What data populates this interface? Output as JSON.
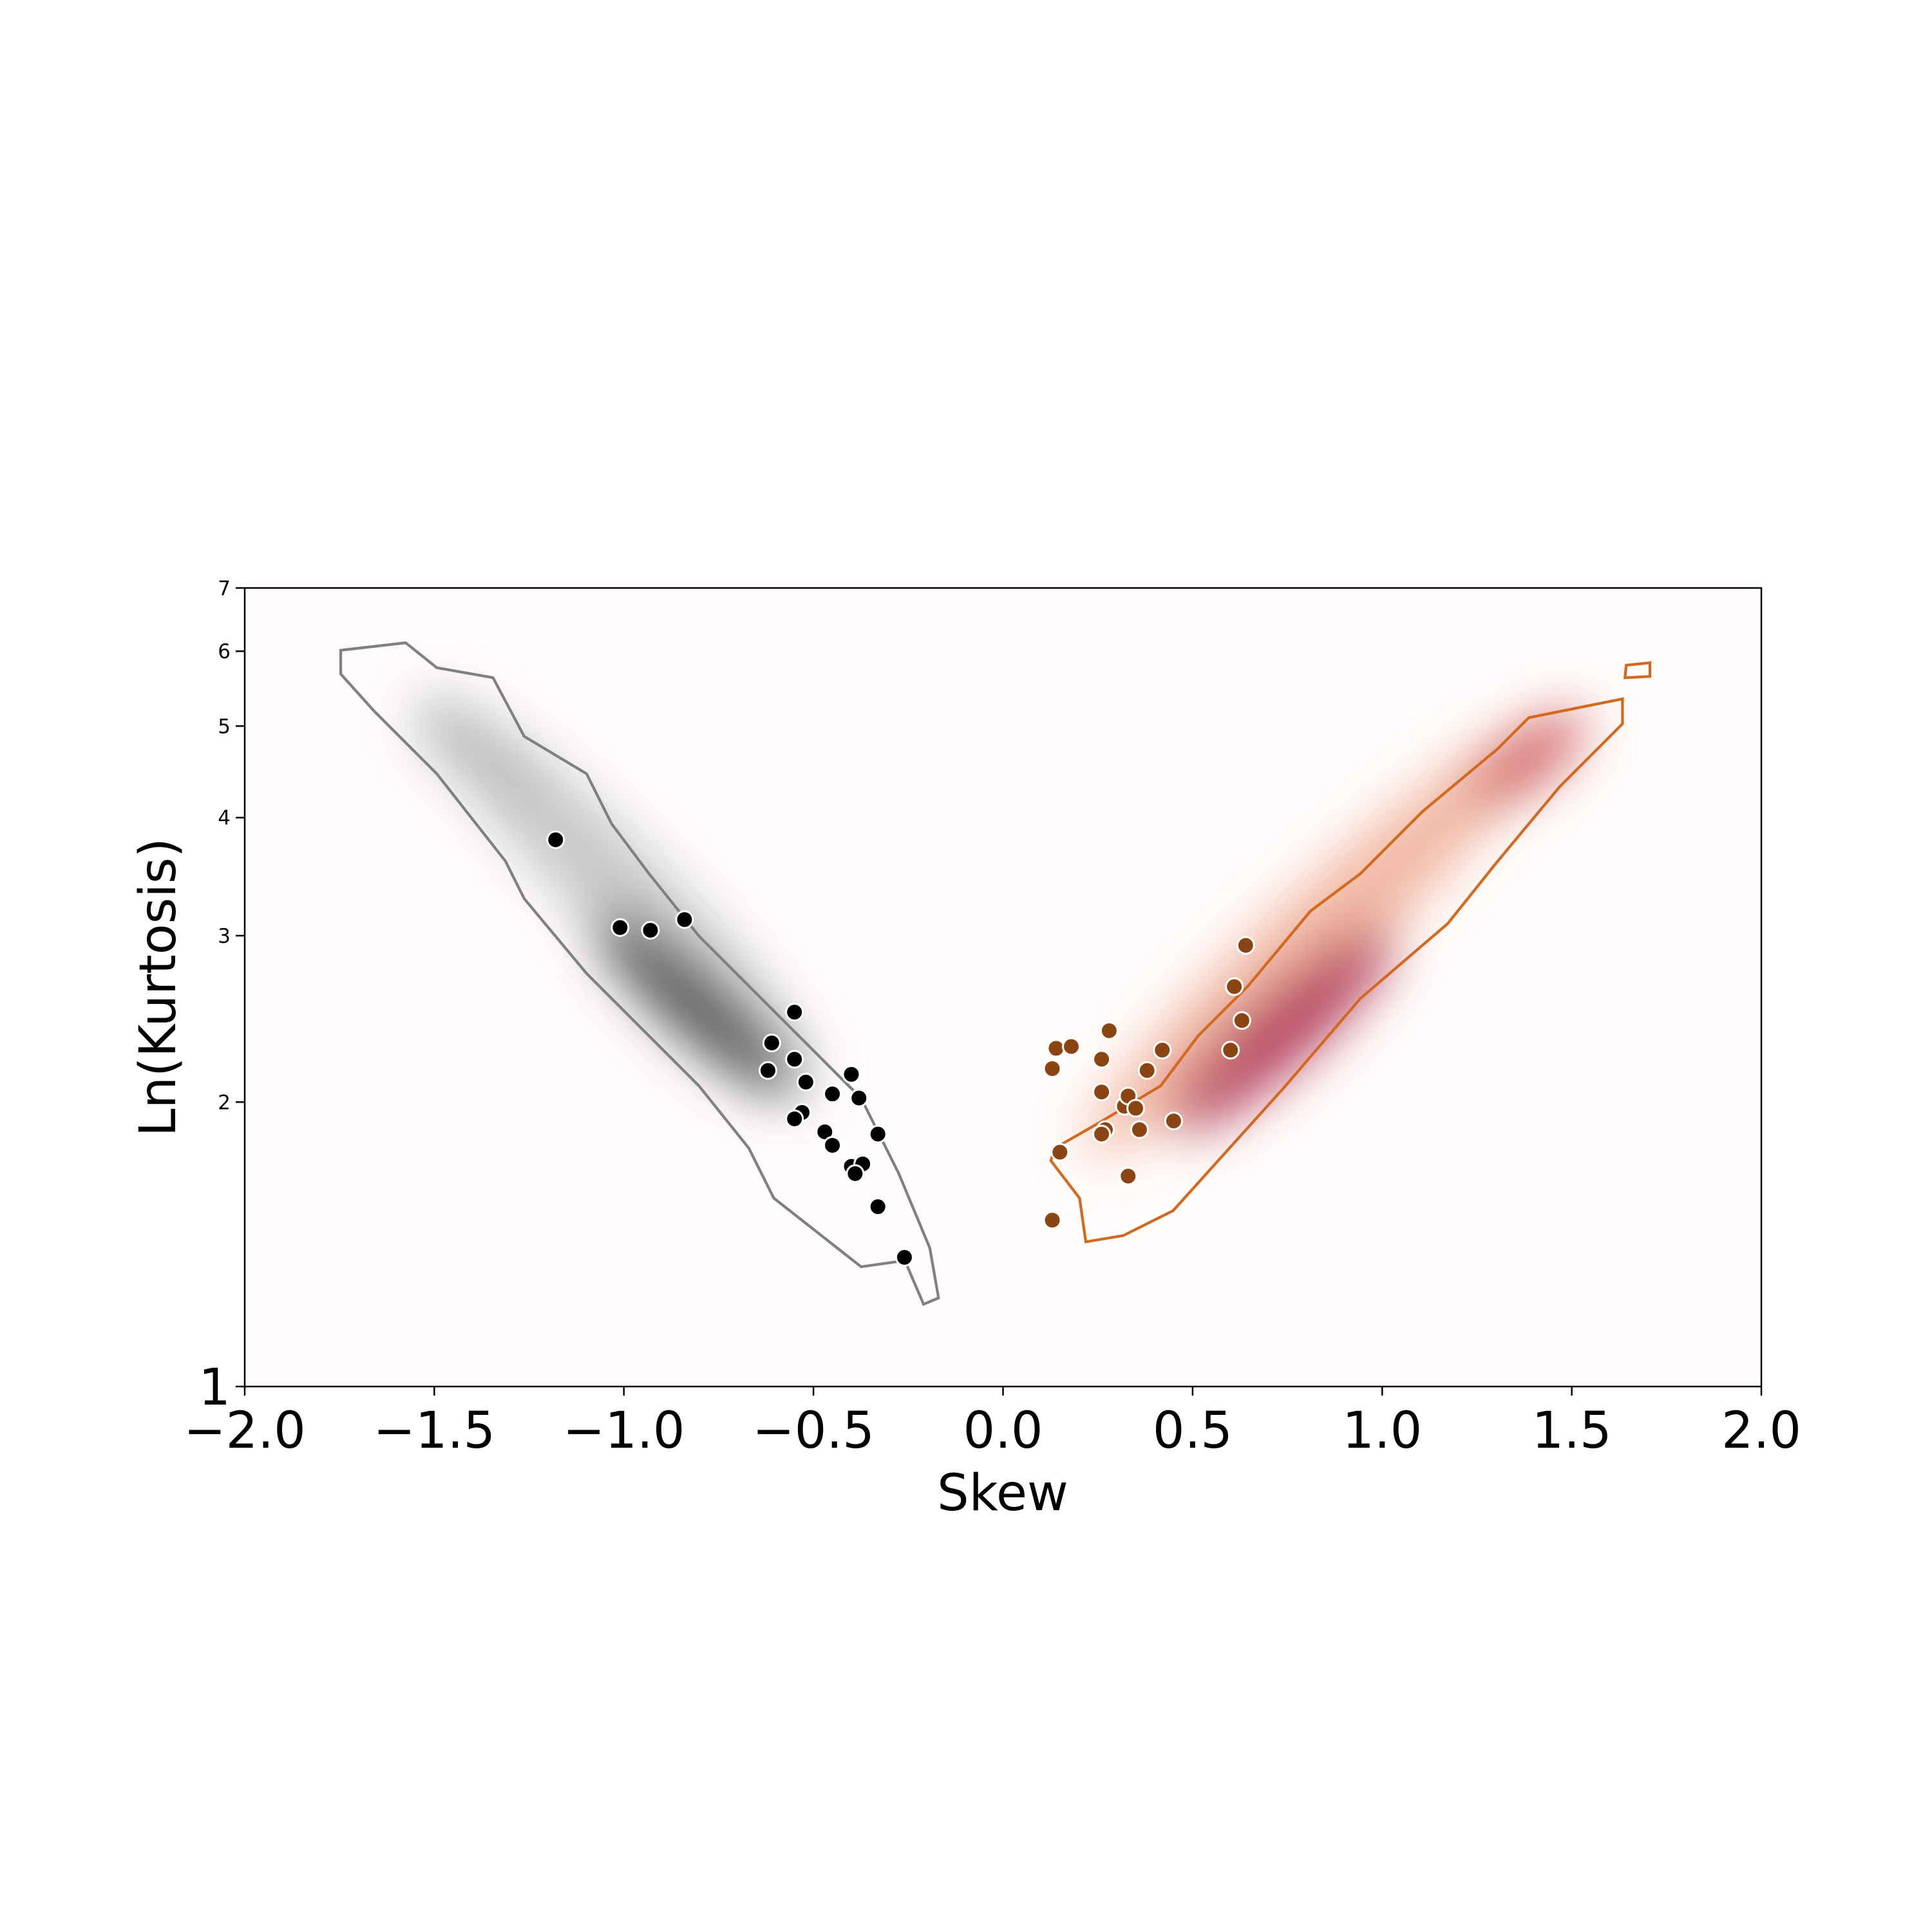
{
  "chart_data": {
    "type": "scatter",
    "xlabel": "Skew",
    "ylabel": "Ln(Kurtosis)",
    "xlim": [
      -2,
      2
    ],
    "ylim": [
      1,
      7
    ],
    "yscale": "log",
    "xticks": [
      {
        "value": -2,
        "label": "−2.0"
      },
      {
        "value": -1.5,
        "label": "−1.5"
      },
      {
        "value": -1,
        "label": "−1.0"
      },
      {
        "value": -0.5,
        "label": "−0.5"
      },
      {
        "value": 0,
        "label": "0.0"
      },
      0.5,
      {
        "value": 1,
        "label": "1.0"
      },
      1.5,
      {
        "value": 2,
        "label": "2.0"
      }
    ],
    "yticks": [
      1,
      2,
      3,
      4,
      5,
      6,
      7
    ],
    "series": [
      {
        "color": "#000000",
        "x": [
          -1.18,
          -1.01,
          -0.93,
          -0.84,
          -0.55,
          -0.61,
          -0.62,
          -0.55,
          -0.52,
          -0.4,
          -0.45,
          -0.38,
          -0.53,
          -0.55,
          -0.47,
          -0.33,
          -0.45,
          -0.4,
          -0.37,
          -0.39,
          -0.33,
          -0.26
        ],
        "values": [
          3.79,
          3.06,
          3.04,
          3.12,
          2.49,
          2.31,
          2.16,
          2.22,
          2.1,
          2.14,
          2.04,
          2.02,
          1.95,
          1.92,
          1.86,
          1.85,
          1.8,
          1.71,
          1.72,
          1.68,
          1.55,
          1.37
        ]
      },
      {
        "color": "#8b4513",
        "x": [
          0.13,
          0.15,
          0.13,
          0.14,
          0.18,
          0.28,
          0.26,
          0.26,
          0.27,
          0.26,
          0.32,
          0.33,
          0.35,
          0.38,
          0.36,
          0.33,
          0.42,
          0.45,
          0.6,
          0.63,
          0.61,
          0.64
        ],
        "values": [
          1.5,
          1.77,
          2.17,
          2.28,
          2.29,
          2.38,
          2.22,
          2.05,
          1.87,
          1.85,
          1.98,
          2.03,
          1.97,
          2.16,
          1.87,
          1.67,
          2.27,
          1.91,
          2.27,
          2.44,
          2.65,
          2.93
        ]
      }
    ]
  }
}
